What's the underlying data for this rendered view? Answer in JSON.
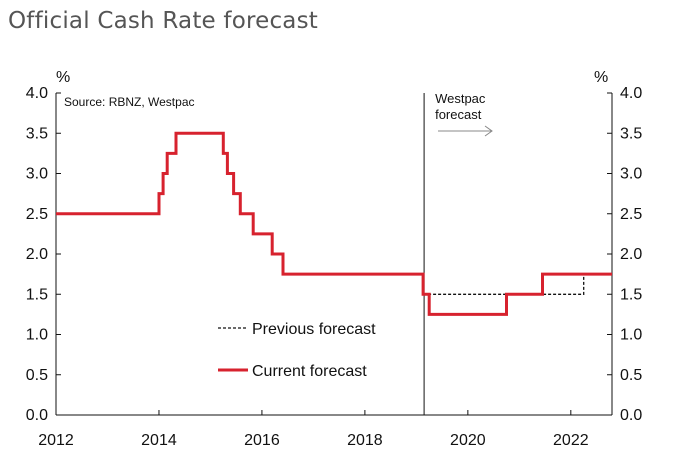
{
  "chart_data": {
    "type": "line",
    "title": "Official Cash Rate forecast",
    "source": "Source: RBNZ, Westpac",
    "ylabel_left": "%",
    "ylabel_right": "%",
    "ylim": [
      0,
      4
    ],
    "xlim": [
      2012,
      2022.8
    ],
    "y_ticks": [
      "0.0",
      "0.5",
      "1.0",
      "1.5",
      "2.0",
      "2.5",
      "3.0",
      "3.5",
      "4.0"
    ],
    "x_ticks": [
      "2012",
      "2014",
      "2016",
      "2018",
      "2020",
      "2022"
    ],
    "forecast_start": 2019.15,
    "forecast_label_line1": "Westpac",
    "forecast_label_line2": "forecast",
    "legend": {
      "previous": "Previous forecast",
      "current": "Current forecast"
    },
    "colors": {
      "current": "#d7222e",
      "previous": "#111111",
      "axis": "#111111"
    },
    "series": [
      {
        "name": "Current forecast",
        "style": "solid-step",
        "x": [
          2012.0,
          2014.0,
          2014.08,
          2014.16,
          2014.33,
          2014.41,
          2015.25,
          2015.33,
          2015.45,
          2015.58,
          2015.83,
          2016.2,
          2016.41,
          2016.66,
          2019.13,
          2019.25,
          2020.75,
          2021.45,
          2022.8
        ],
        "values": [
          2.5,
          2.75,
          3.0,
          3.25,
          3.5,
          3.5,
          3.25,
          3.0,
          2.75,
          2.5,
          2.25,
          2.0,
          1.75,
          1.75,
          1.5,
          1.25,
          1.5,
          1.75,
          1.75
        ]
      },
      {
        "name": "Previous forecast",
        "style": "dashed-step",
        "x": [
          2019.13,
          2022.25,
          2022.8
        ],
        "values": [
          1.5,
          1.75,
          1.75
        ]
      }
    ]
  }
}
